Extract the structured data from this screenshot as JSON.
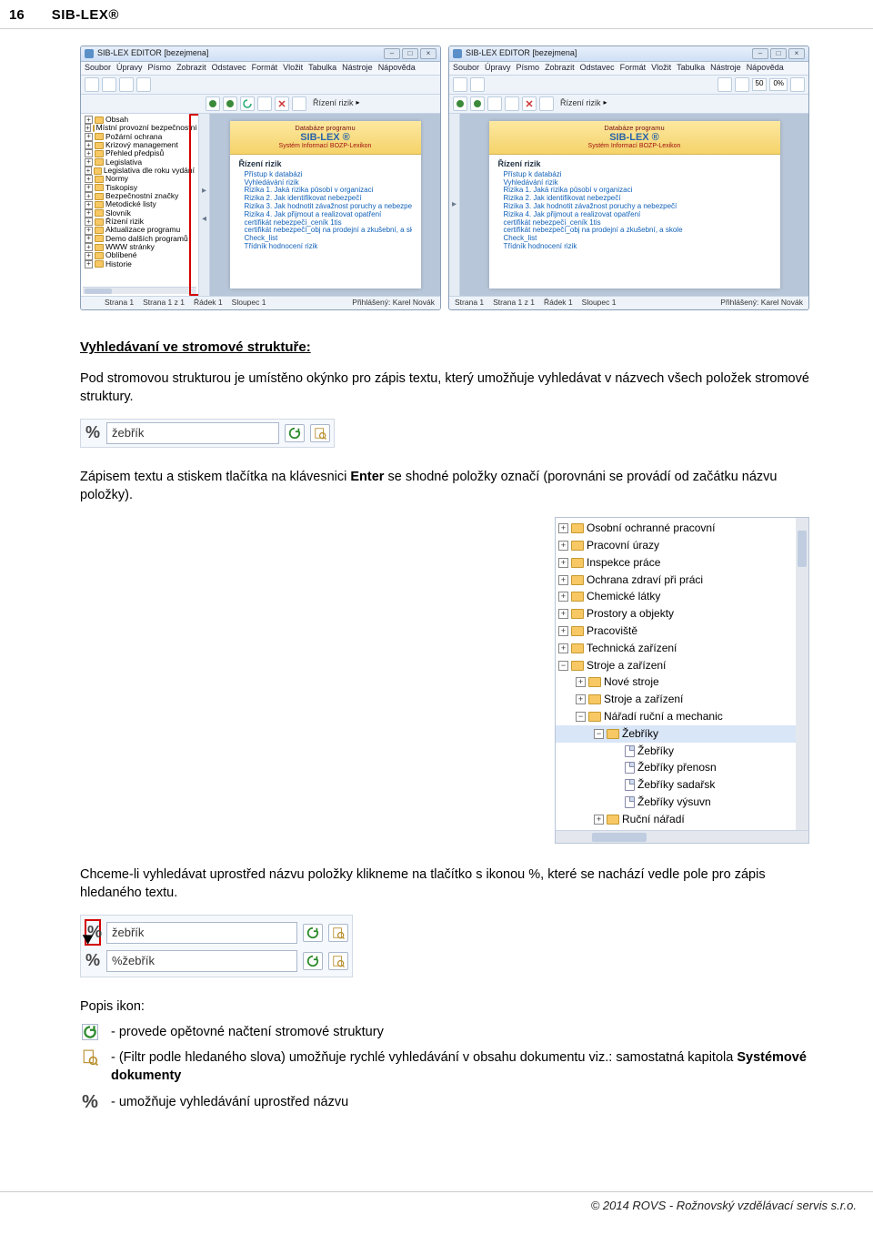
{
  "page_header": {
    "page_number": "16",
    "product": "SIB-LEX®"
  },
  "heading": "Vyhledávaní ve stromové struktuře:",
  "p1": "Pod stromovou strukturou  je umístěno okýnko pro zápis textu, který umožňuje vyhledávat v názvech všech položek stromové struktury.",
  "search_example_1": {
    "value": "žebřík"
  },
  "p2a": "Zápisem textu a stiskem tlačítka na klávesnici ",
  "p2_enter": "Enter",
  "p2b": " se shodné položky označí (porovnáni se provádí od začátku názvu položky).",
  "tree_panel": {
    "items": [
      {
        "level": 0,
        "exp": "+",
        "icon": "folder",
        "label": "Osobní ochranné pracovní"
      },
      {
        "level": 0,
        "exp": "+",
        "icon": "folder",
        "label": "Pracovní úrazy"
      },
      {
        "level": 0,
        "exp": "+",
        "icon": "folder",
        "label": "Inspekce práce"
      },
      {
        "level": 0,
        "exp": "+",
        "icon": "folder",
        "label": "Ochrana zdraví při práci"
      },
      {
        "level": 0,
        "exp": "+",
        "icon": "folder",
        "label": "Chemické látky"
      },
      {
        "level": 0,
        "exp": "+",
        "icon": "folder",
        "label": "Prostory a objekty"
      },
      {
        "level": 0,
        "exp": "+",
        "icon": "folder",
        "label": "Pracoviště"
      },
      {
        "level": 0,
        "exp": "+",
        "icon": "folder",
        "label": "Technická zařízení"
      },
      {
        "level": 0,
        "exp": "−",
        "icon": "folder",
        "label": "Stroje a zařízení"
      },
      {
        "level": 1,
        "exp": "+",
        "icon": "folder",
        "label": "Nové stroje"
      },
      {
        "level": 1,
        "exp": "+",
        "icon": "folder",
        "label": "Stroje a zařízení"
      },
      {
        "level": 1,
        "exp": "−",
        "icon": "folder",
        "label": "Nářadí ruční a mechanic"
      },
      {
        "level": 2,
        "exp": "−",
        "icon": "folder",
        "label": "Žebříky",
        "selected": true
      },
      {
        "level": 3,
        "exp": "",
        "icon": "file",
        "label": "Žebříky"
      },
      {
        "level": 3,
        "exp": "",
        "icon": "file",
        "label": "Žebříky přenosn"
      },
      {
        "level": 3,
        "exp": "",
        "icon": "file",
        "label": "Žebříky sadařsk"
      },
      {
        "level": 3,
        "exp": "",
        "icon": "file",
        "label": "Žebříky výsuvn"
      },
      {
        "level": 2,
        "exp": "+",
        "icon": "folder",
        "label": "Ruční nářadí"
      }
    ]
  },
  "p3": "Chceme-li vyhledávat uprostřed názvu položky klikneme na tlačítko s ikonou %, které se nachází vedle pole pro zápis hledaného textu.",
  "search_example_2": {
    "row1": {
      "value": "žebřík"
    },
    "row2": {
      "value": "%žebřík"
    }
  },
  "legend": {
    "title": "Popis ikon:",
    "items": [
      {
        "icon": "refresh",
        "text_before": "- provede opětovné načtení stromové struktury"
      },
      {
        "icon": "filter",
        "text_before": "- (Filtr podle hledaného slova)  umožňuje rychlé vyhledávání v obsahu dokumentu viz.:  samostatná kapitola ",
        "bold_tail": "Systémové dokumenty"
      },
      {
        "icon": "percent",
        "text_before": "- umožňuje vyhledávání uprostřed názvu"
      }
    ]
  },
  "footer": "© 2014 ROVS - Rožnovský vzdělávací servis s.r.o.",
  "app_window": {
    "title": "SIB-LEX EDITOR [bezejmena]",
    "menu": [
      "Soubor",
      "Úpravy",
      "Písmo",
      "Zobrazit",
      "Odstavec",
      "Formát",
      "Vložit",
      "Tabulka",
      "Nástroje",
      "Nápověda"
    ],
    "zoom": "50",
    "toolbar_label": "Řízení rizik",
    "tree_items": [
      "Obsah",
      "Místní provozní bezpečnostní p",
      "Požární ochrana",
      "Krizový management",
      "Přehled předpisů",
      "Legislativa",
      "Legislativa dle roku vydání",
      "Normy",
      "Tiskopisy",
      "Bezpečnostní značky",
      "Metodické listy",
      "Slovník",
      "Řízení rizik",
      "Aktualizace programu",
      "Demo dalších programů",
      "WWW stránky",
      "Oblíbené",
      "Historie"
    ],
    "doc": {
      "banner_top": "Databáze programu",
      "logo": "SIB-LEX ®",
      "banner_sub": "Systém Informací BOZP-Lexikon",
      "section": "Řízení rizik",
      "lines": [
        "Přístup k databázi",
        "Vyhledávání rizik",
        "Rizika 1. Jaká rizika působí v organizaci",
        "Rizika 2. Jak identifikovat nebezpečí",
        "Rizika 3. Jak hodnotit závažnost poruchy a nebezpečí",
        "Rizika 4. Jak přijmout a realizovat opatření",
        "certifikát nebezpečí_ceník 1tis",
        "certifikát nebezpečí_obj na prodejní a zkušební, a skole",
        "Check_list",
        "Třídník hodnocení rizik"
      ]
    },
    "status": {
      "strana": "Strana 1",
      "z": "Strana 1 z 1",
      "radek": "Řádek 1",
      "sloupec": "Sloupec 1",
      "login": "Přihlášený: Karel Novák"
    }
  },
  "colors": {
    "accent_blue": "#2a64a8",
    "red_highlight": "#d40000",
    "link_blue": "#1060b8",
    "folder": "#f7c863"
  }
}
